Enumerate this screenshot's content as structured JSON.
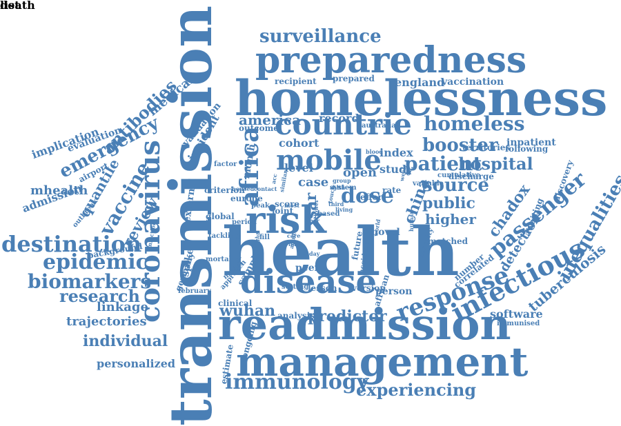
{
  "style": {
    "color": "#4a7fb5",
    "background": "#ffffff"
  },
  "words": [
    "health",
    "transmission",
    "homelessness",
    "readmission",
    "management",
    "preparedness",
    "coronavirus",
    "countrie",
    "disease",
    "risk",
    "infectious",
    "response",
    "passenger",
    "mobile",
    "patient",
    "immunology",
    "experiencing",
    "homeless",
    "booster",
    "hospital",
    "inequalities",
    "africa",
    "destination",
    "epidemic",
    "biomarkers",
    "research",
    "tuberculosis",
    "wuhan",
    "predictor",
    "chadox",
    "emergency",
    "vaccine",
    "antibodies",
    "surveillance",
    "dose",
    "source",
    "public",
    "higher",
    "detection",
    "individual",
    "trajectories",
    "linkage",
    "review",
    "quantile",
    "mhealth",
    "admission",
    "implication",
    "evaluation",
    "medical",
    "validation",
    "incident",
    "personalized",
    "software",
    "america",
    "record",
    "cohort",
    "index",
    "level",
    "case",
    "open",
    "sar",
    "china",
    "study",
    "england",
    "vaccination",
    "recipient",
    "prepared",
    "australia",
    "outcome",
    "inpatient",
    "following",
    "territories",
    "discharge",
    "cumulative",
    "variable",
    "discovery",
    "awaiting",
    "correlated",
    "number",
    "matched",
    "security",
    "novel",
    "human",
    "african",
    "accident",
    "future",
    "peer",
    "lesson",
    "version",
    "person",
    "setting",
    "sample",
    "clinical",
    "analysis",
    "ongoing",
    "estimate",
    "immunised",
    "background",
    "mortality",
    "germany",
    "tackling",
    "global",
    "spike",
    "external",
    "factor",
    "criterion",
    "housed",
    "contact",
    "period",
    "europe",
    "peak",
    "joint",
    "score",
    "care",
    "half",
    "day",
    "year",
    "lower",
    "blood",
    "airport",
    "outbreak",
    "infection",
    "february",
    "approach",
    "model",
    "month",
    "system",
    "hlth",
    "third",
    "group",
    "effort",
    "rate",
    "week",
    "based",
    "acc",
    "world",
    "adult",
    "flight",
    "fill",
    "similar",
    "most",
    "touch",
    "living",
    "list",
    "death"
  ]
}
